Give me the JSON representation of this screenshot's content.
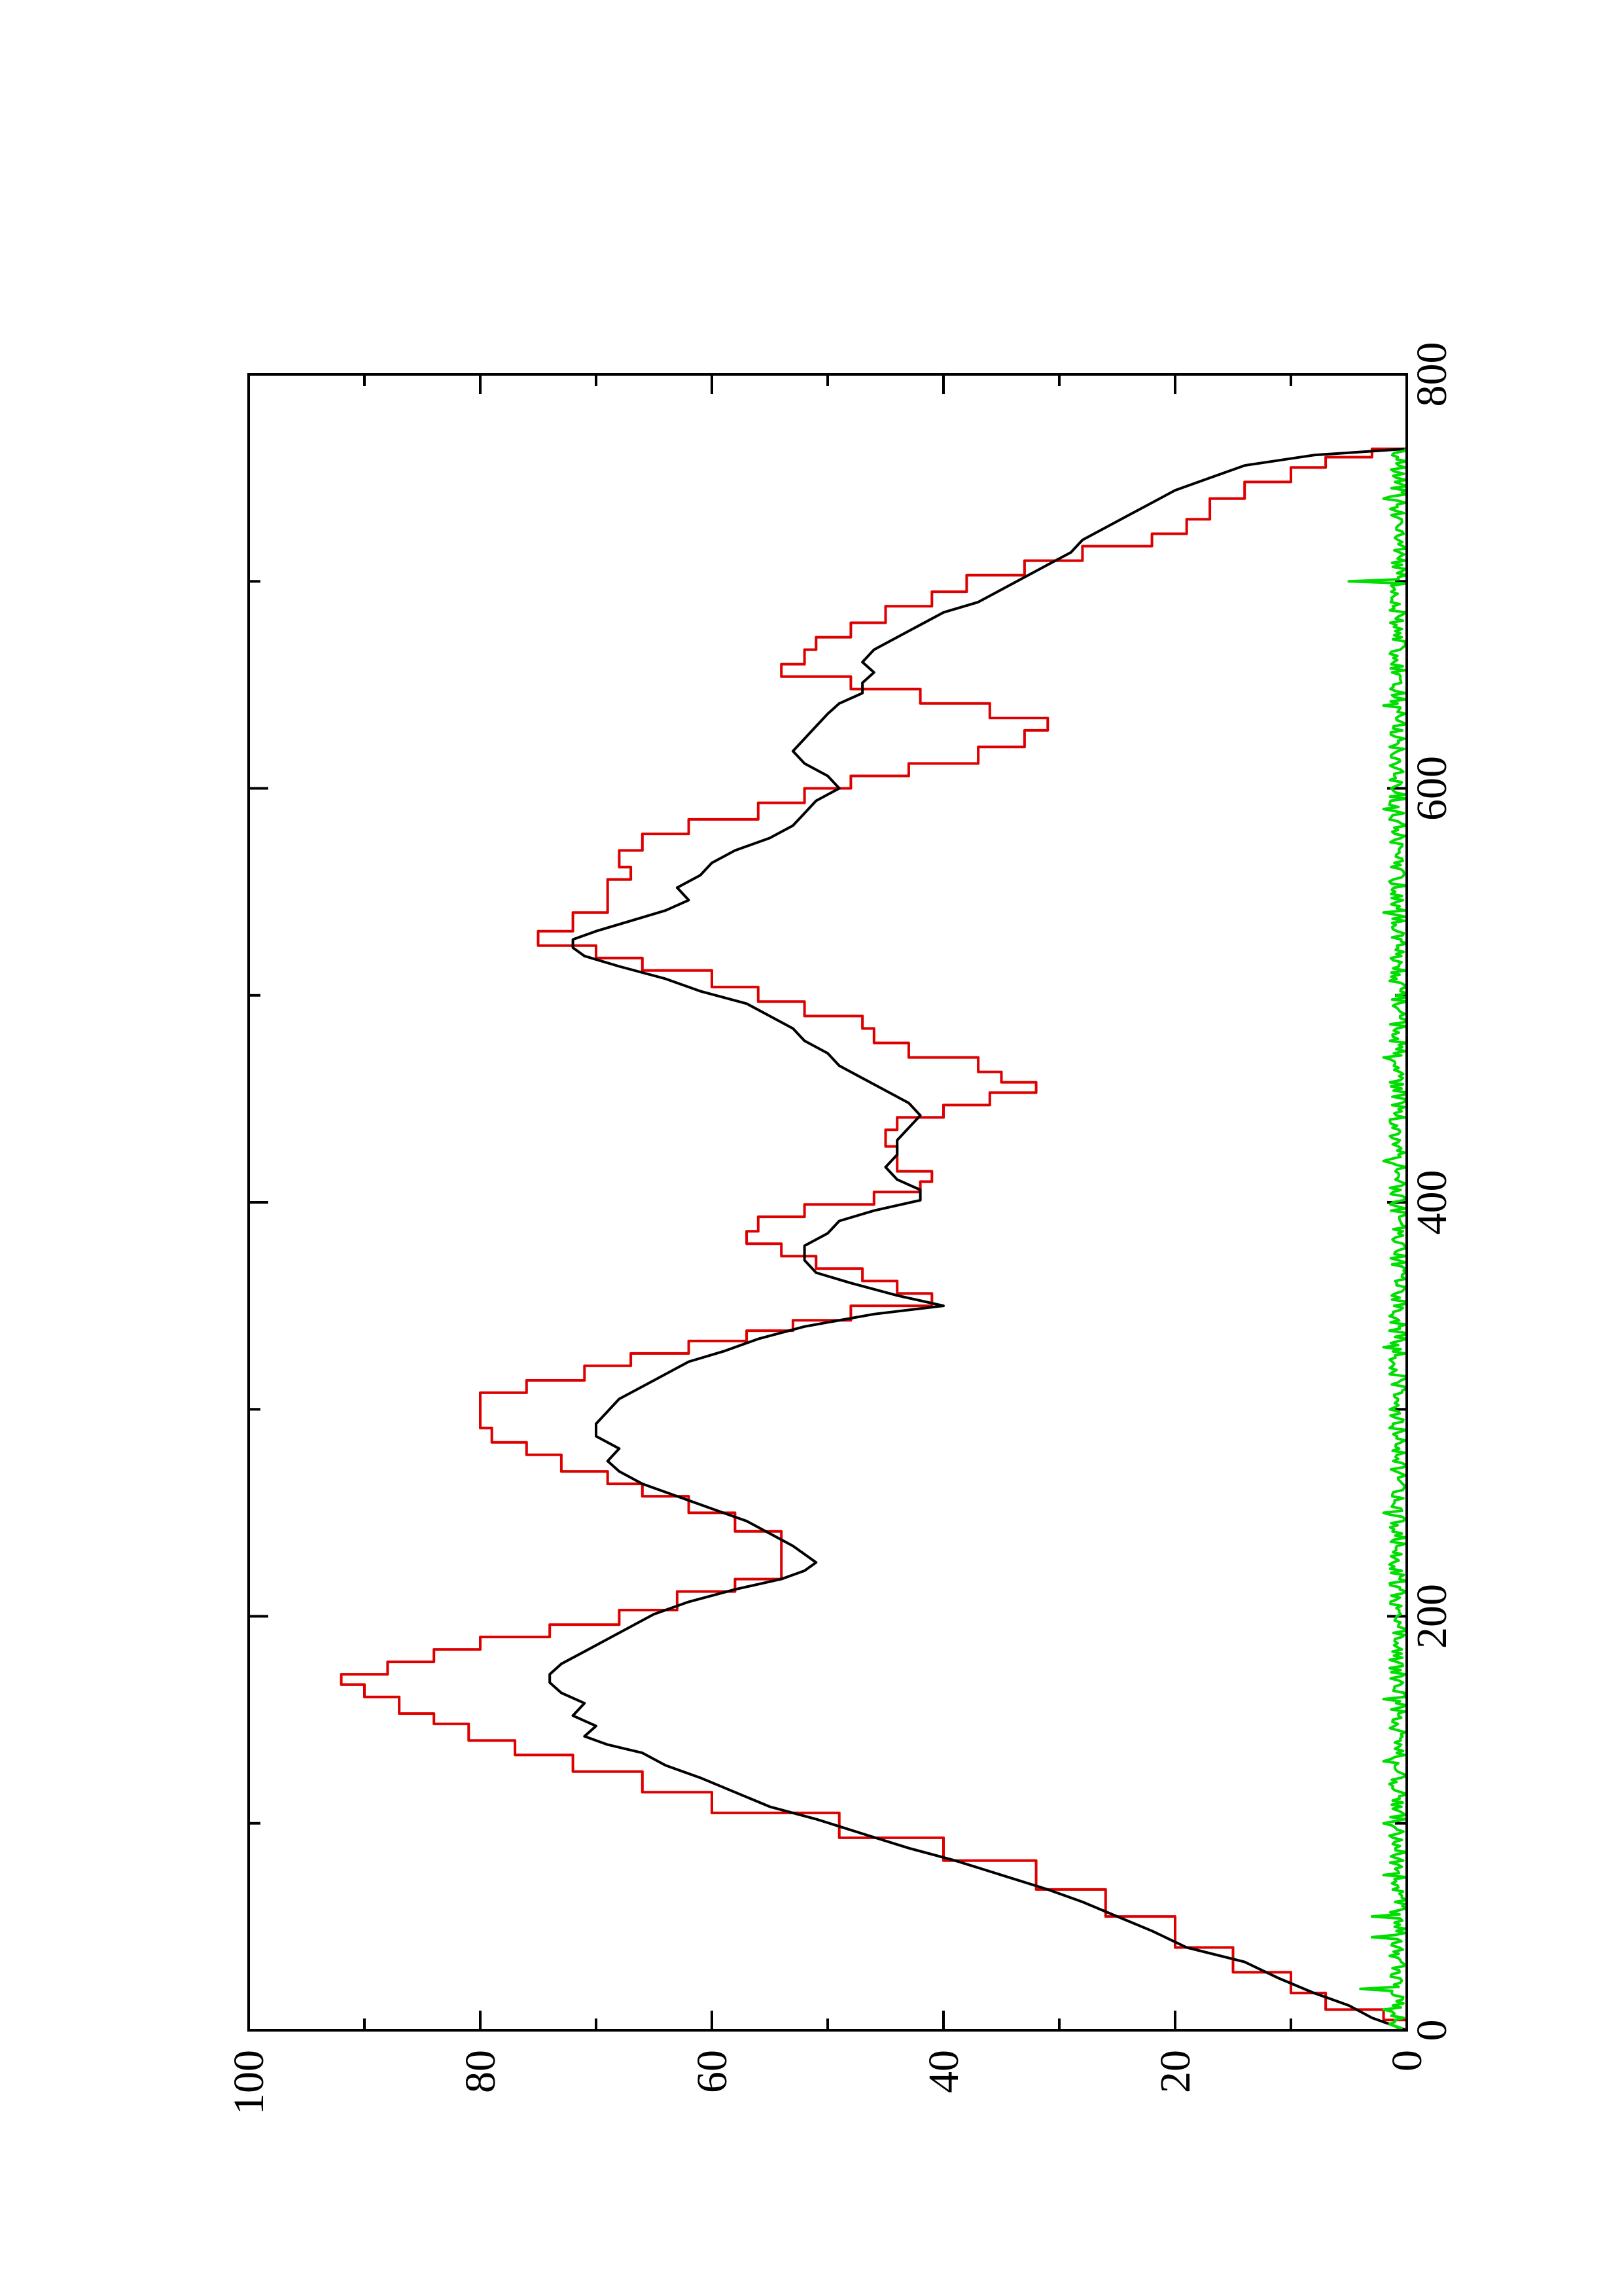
{
  "chart_data": {
    "type": "line",
    "orientation": "rotated-90-clockwise",
    "title": "",
    "xlabel": "",
    "ylabel": "",
    "xlim": [
      0,
      800
    ],
    "ylim": [
      0,
      100
    ],
    "x_ticks": [
      0,
      200,
      400,
      600,
      800
    ],
    "y_ticks": [
      0,
      20,
      40,
      60,
      80,
      100
    ],
    "x_minor_ticks": [
      100,
      300,
      500,
      700
    ],
    "y_minor_ticks": [
      10,
      30,
      50,
      70,
      90
    ],
    "grid": false,
    "legend": "none",
    "series": [
      {
        "color": "#dd0000",
        "style": "step",
        "points": [
          [
            0,
            0
          ],
          [
            5,
            2
          ],
          [
            10,
            7
          ],
          [
            18,
            10
          ],
          [
            28,
            15
          ],
          [
            40,
            20
          ],
          [
            55,
            26
          ],
          [
            68,
            32
          ],
          [
            82,
            40
          ],
          [
            93,
            49
          ],
          [
            105,
            60
          ],
          [
            115,
            66
          ],
          [
            125,
            72
          ],
          [
            133,
            77
          ],
          [
            140,
            81
          ],
          [
            148,
            84
          ],
          [
            153,
            87
          ],
          [
            161,
            90
          ],
          [
            167,
            92
          ],
          [
            172,
            88
          ],
          [
            178,
            84
          ],
          [
            184,
            80
          ],
          [
            190,
            74
          ],
          [
            196,
            68
          ],
          [
            203,
            63
          ],
          [
            212,
            58
          ],
          [
            218,
            54
          ],
          [
            227,
            54
          ],
          [
            235,
            54
          ],
          [
            241,
            58
          ],
          [
            250,
            62
          ],
          [
            258,
            66
          ],
          [
            264,
            69
          ],
          [
            270,
            73
          ],
          [
            278,
            76
          ],
          [
            284,
            79
          ],
          [
            291,
            80
          ],
          [
            300,
            80
          ],
          [
            308,
            76
          ],
          [
            314,
            71
          ],
          [
            321,
            67
          ],
          [
            327,
            62
          ],
          [
            333,
            57
          ],
          [
            338,
            53
          ],
          [
            343,
            48
          ],
          [
            350,
            41
          ],
          [
            356,
            44
          ],
          [
            362,
            47
          ],
          [
            368,
            51
          ],
          [
            374,
            54
          ],
          [
            380,
            57
          ],
          [
            386,
            56
          ],
          [
            393,
            52
          ],
          [
            399,
            46
          ],
          [
            405,
            42
          ],
          [
            410,
            41
          ],
          [
            415,
            44
          ],
          [
            421,
            44
          ],
          [
            427,
            45
          ],
          [
            435,
            44
          ],
          [
            441,
            40
          ],
          [
            447,
            36
          ],
          [
            453,
            32
          ],
          [
            458,
            35
          ],
          [
            463,
            37
          ],
          [
            470,
            43
          ],
          [
            477,
            46
          ],
          [
            484,
            47
          ],
          [
            490,
            52
          ],
          [
            497,
            56
          ],
          [
            504,
            60
          ],
          [
            512,
            66
          ],
          [
            518,
            70
          ],
          [
            524,
            75
          ],
          [
            531,
            72
          ],
          [
            540,
            69
          ],
          [
            550,
            69
          ],
          [
            556,
            67
          ],
          [
            562,
            68
          ],
          [
            570,
            66
          ],
          [
            578,
            62
          ],
          [
            585,
            56
          ],
          [
            593,
            52
          ],
          [
            600,
            48
          ],
          [
            606,
            43
          ],
          [
            612,
            37
          ],
          [
            620,
            33
          ],
          [
            628,
            31
          ],
          [
            634,
            36
          ],
          [
            641,
            42
          ],
          [
            648,
            48
          ],
          [
            654,
            54
          ],
          [
            660,
            52
          ],
          [
            667,
            51
          ],
          [
            673,
            48
          ],
          [
            680,
            45
          ],
          [
            688,
            41
          ],
          [
            695,
            38
          ],
          [
            703,
            33
          ],
          [
            710,
            28
          ],
          [
            717,
            22
          ],
          [
            723,
            19
          ],
          [
            730,
            17
          ],
          [
            740,
            14
          ],
          [
            748,
            10
          ],
          [
            755,
            7
          ],
          [
            760,
            3
          ],
          [
            764,
            0
          ]
        ]
      },
      {
        "color": "#000000",
        "style": "line",
        "points": [
          [
            0,
            0
          ],
          [
            6,
            3
          ],
          [
            12,
            5
          ],
          [
            18,
            8
          ],
          [
            25,
            11
          ],
          [
            33,
            14
          ],
          [
            40,
            19
          ],
          [
            48,
            22
          ],
          [
            55,
            25
          ],
          [
            62,
            28
          ],
          [
            68,
            31
          ],
          [
            75,
            35
          ],
          [
            82,
            39
          ],
          [
            88,
            43
          ],
          [
            95,
            47
          ],
          [
            102,
            51
          ],
          [
            108,
            55
          ],
          [
            115,
            58
          ],
          [
            122,
            61
          ],
          [
            128,
            64
          ],
          [
            134,
            66
          ],
          [
            138,
            69
          ],
          [
            142,
            71
          ],
          [
            147,
            70
          ],
          [
            152,
            72
          ],
          [
            158,
            71
          ],
          [
            163,
            73
          ],
          [
            168,
            74
          ],
          [
            172,
            74
          ],
          [
            177,
            73
          ],
          [
            183,
            71
          ],
          [
            189,
            69
          ],
          [
            195,
            67
          ],
          [
            201,
            65
          ],
          [
            207,
            62
          ],
          [
            213,
            58
          ],
          [
            218,
            54
          ],
          [
            222,
            52
          ],
          [
            226,
            51
          ],
          [
            230,
            52
          ],
          [
            234,
            53
          ],
          [
            240,
            55
          ],
          [
            246,
            57
          ],
          [
            252,
            60
          ],
          [
            258,
            63
          ],
          [
            264,
            66
          ],
          [
            270,
            68
          ],
          [
            275,
            69
          ],
          [
            281,
            68
          ],
          [
            287,
            70
          ],
          [
            293,
            70
          ],
          [
            299,
            69
          ],
          [
            305,
            68
          ],
          [
            311,
            66
          ],
          [
            317,
            64
          ],
          [
            323,
            62
          ],
          [
            328,
            59
          ],
          [
            334,
            56
          ],
          [
            340,
            52
          ],
          [
            346,
            46
          ],
          [
            350,
            40
          ],
          [
            355,
            44
          ],
          [
            361,
            48
          ],
          [
            366,
            51
          ],
          [
            372,
            52
          ],
          [
            379,
            52
          ],
          [
            385,
            50
          ],
          [
            391,
            49
          ],
          [
            396,
            46
          ],
          [
            401,
            42
          ],
          [
            406,
            42
          ],
          [
            411,
            44
          ],
          [
            417,
            45
          ],
          [
            423,
            44
          ],
          [
            430,
            44
          ],
          [
            436,
            43
          ],
          [
            442,
            42
          ],
          [
            448,
            43
          ],
          [
            454,
            45
          ],
          [
            460,
            47
          ],
          [
            466,
            49
          ],
          [
            472,
            50
          ],
          [
            478,
            52
          ],
          [
            484,
            53
          ],
          [
            490,
            55
          ],
          [
            496,
            57
          ],
          [
            502,
            61
          ],
          [
            508,
            64
          ],
          [
            514,
            68
          ],
          [
            519,
            71
          ],
          [
            523,
            72
          ],
          [
            527,
            72
          ],
          [
            531,
            70
          ],
          [
            536,
            67
          ],
          [
            541,
            64
          ],
          [
            546,
            62
          ],
          [
            552,
            63
          ],
          [
            558,
            61
          ],
          [
            564,
            60
          ],
          [
            570,
            58
          ],
          [
            576,
            55
          ],
          [
            582,
            53
          ],
          [
            588,
            52
          ],
          [
            594,
            51
          ],
          [
            600,
            49
          ],
          [
            606,
            50
          ],
          [
            612,
            52
          ],
          [
            618,
            53
          ],
          [
            624,
            52
          ],
          [
            630,
            51
          ],
          [
            636,
            50
          ],
          [
            641,
            49
          ],
          [
            646,
            47
          ],
          [
            651,
            47
          ],
          [
            656,
            46
          ],
          [
            661,
            47
          ],
          [
            667,
            46
          ],
          [
            673,
            44
          ],
          [
            679,
            42
          ],
          [
            685,
            40
          ],
          [
            690,
            37
          ],
          [
            696,
            35
          ],
          [
            702,
            33
          ],
          [
            708,
            31
          ],
          [
            714,
            29
          ],
          [
            720,
            28
          ],
          [
            726,
            26
          ],
          [
            732,
            24
          ],
          [
            738,
            22
          ],
          [
            744,
            20
          ],
          [
            750,
            17
          ],
          [
            756,
            14
          ],
          [
            761,
            8
          ],
          [
            764,
            0
          ]
        ]
      },
      {
        "color": "#00dd00",
        "style": "noise",
        "baseline": 0,
        "amplitude": 1.5,
        "x_range": [
          0,
          764
        ],
        "spikes": [
          [
            10,
            2
          ],
          [
            20,
            4
          ],
          [
            45,
            3
          ],
          [
            55,
            3
          ],
          [
            75,
            2
          ],
          [
            100,
            2
          ],
          [
            130,
            2
          ],
          [
            160,
            2
          ],
          [
            250,
            2
          ],
          [
            330,
            2
          ],
          [
            420,
            2
          ],
          [
            470,
            2
          ],
          [
            540,
            2
          ],
          [
            590,
            2
          ],
          [
            640,
            2
          ],
          [
            700,
            5
          ],
          [
            740,
            2
          ]
        ]
      }
    ]
  }
}
